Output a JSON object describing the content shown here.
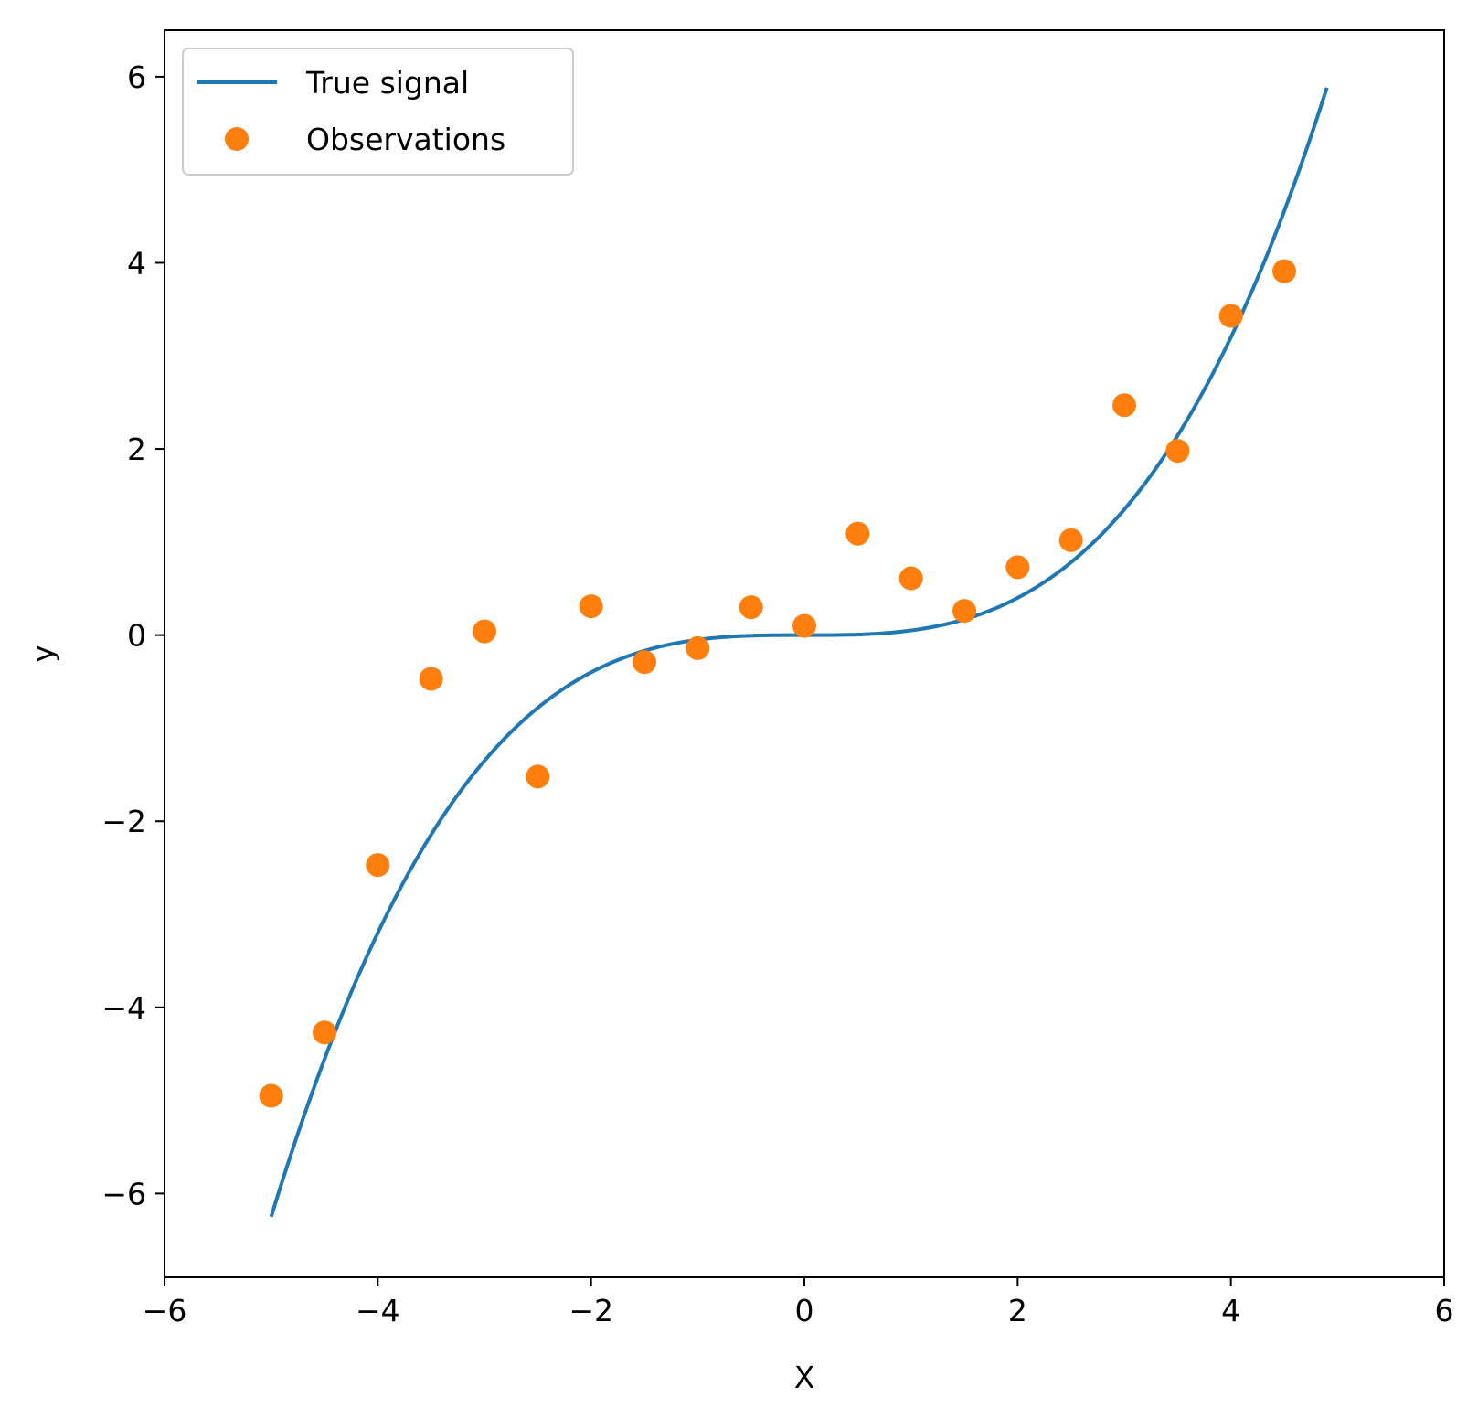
{
  "chart_data": {
    "type": "line",
    "title": "",
    "xlabel": "X",
    "ylabel": "y",
    "xlim": [
      -6,
      6
    ],
    "ylim": [
      -6.9,
      6.5
    ],
    "xticks": [
      -6,
      -4,
      -2,
      0,
      2,
      4,
      6
    ],
    "yticks": [
      -6,
      -4,
      -2,
      0,
      2,
      4,
      6
    ],
    "xtick_labels": [
      "−6",
      "−4",
      "−2",
      "0",
      "2",
      "4",
      "6"
    ],
    "ytick_labels": [
      "−6",
      "−4",
      "−2",
      "0",
      "2",
      "4",
      "6"
    ],
    "grid": false,
    "legend_position": "upper-left",
    "series": [
      {
        "name": "True signal",
        "kind": "line",
        "color": "#1f77b4",
        "function": "y = 0.05 * x^3",
        "x_range": [
          -5.0,
          4.9
        ]
      },
      {
        "name": "Observations",
        "kind": "scatter",
        "color": "#ff7f0e",
        "x": [
          -5.0,
          -4.5,
          -4.0,
          -3.5,
          -3.0,
          -2.5,
          -2.0,
          -1.5,
          -1.0,
          -0.5,
          0.0,
          0.5,
          1.0,
          1.5,
          2.0,
          2.5,
          3.0,
          3.5,
          4.0,
          4.5
        ],
        "y": [
          -4.95,
          -4.27,
          -2.47,
          -0.47,
          0.04,
          -1.52,
          0.31,
          -0.29,
          -0.14,
          0.3,
          0.1,
          1.09,
          0.61,
          0.26,
          0.73,
          1.02,
          2.47,
          1.98,
          3.43,
          3.91
        ]
      }
    ]
  }
}
